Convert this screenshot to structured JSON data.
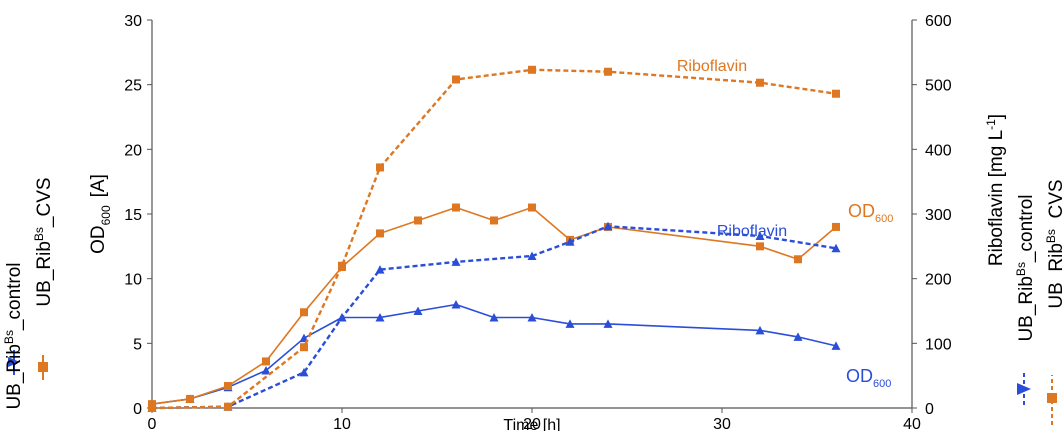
{
  "chart_data": {
    "type": "line",
    "x_axis": {
      "label": "Time [h]",
      "range": [
        0,
        40
      ],
      "ticks": [
        "0",
        "10",
        "20",
        "30",
        "40"
      ]
    },
    "y_left": {
      "label_main": "OD",
      "label_sub": "600",
      "label_rest": "[A]",
      "range": [
        0,
        30
      ],
      "ticks": [
        "0",
        "5",
        "10",
        "15",
        "20",
        "25",
        "30"
      ]
    },
    "y_right": {
      "label_main": "Riboflavin [mg L",
      "label_sup": "-1",
      "label_end": "]",
      "range": [
        0,
        600
      ],
      "ticks": [
        "0",
        "100",
        "200",
        "300",
        "400",
        "500",
        "600"
      ]
    },
    "grid": false,
    "legend": {
      "placement": "left and right, rotated",
      "entries": [
        {
          "prefix": "UB_Rib",
          "sup": "Bs",
          "suffix": "_control",
          "color": "#2a4ed8"
        },
        {
          "prefix": "UB_Rib",
          "sup": "Bs",
          "suffix": "_CVS",
          "color": "#dd7722"
        }
      ]
    },
    "series": [
      {
        "key": "ctrl_od",
        "axis": "left",
        "style": "solid",
        "marker": "triangle",
        "color": "#2a4ed8",
        "x": [
          0,
          2,
          4,
          6,
          8,
          10,
          12,
          14,
          16,
          18,
          20,
          22,
          24,
          32,
          34,
          36
        ],
        "y": [
          0.3,
          0.7,
          1.6,
          2.9,
          5.4,
          7.0,
          7.0,
          7.5,
          8.0,
          7.0,
          7.0,
          6.5,
          6.5,
          6.0,
          5.5,
          4.8
        ]
      },
      {
        "key": "cvs_od",
        "axis": "left",
        "style": "solid",
        "marker": "square",
        "color": "#dd7722",
        "x": [
          0,
          2,
          4,
          6,
          8,
          10,
          12,
          14,
          16,
          18,
          20,
          22,
          24,
          32,
          34,
          36
        ],
        "y": [
          0.3,
          0.7,
          1.7,
          3.6,
          7.4,
          10.9,
          13.5,
          14.5,
          15.5,
          14.5,
          15.5,
          13.0,
          14.0,
          12.5,
          11.5,
          14.0
        ]
      },
      {
        "key": "ctrl_rib",
        "axis": "right",
        "style": "dashed",
        "marker": "triangle",
        "color": "#2a4ed8",
        "x": [
          0,
          4,
          8,
          10,
          12,
          16,
          20,
          22,
          24,
          32,
          36
        ],
        "y": [
          0,
          2,
          55,
          140,
          214,
          226,
          235,
          257,
          281,
          266,
          247
        ]
      },
      {
        "key": "cvs_rib",
        "axis": "right",
        "style": "dashed",
        "marker": "square",
        "color": "#dd7722",
        "x": [
          0,
          4,
          8,
          10,
          12,
          16,
          20,
          24,
          32,
          36
        ],
        "y": [
          0,
          2,
          94,
          220,
          372,
          508,
          523,
          520,
          503,
          486
        ]
      }
    ],
    "annotations": [
      {
        "key": "rib_orange",
        "text": "Riboflavin",
        "color": "#dd7722"
      },
      {
        "key": "rib_blue",
        "text": "Riboflavin",
        "color": "#2a4ed8"
      },
      {
        "key": "od_orange",
        "main": "OD",
        "sub": "600",
        "color": "#dd7722"
      },
      {
        "key": "od_blue",
        "main": "OD",
        "sub": "600",
        "color": "#2a4ed8"
      }
    ]
  }
}
